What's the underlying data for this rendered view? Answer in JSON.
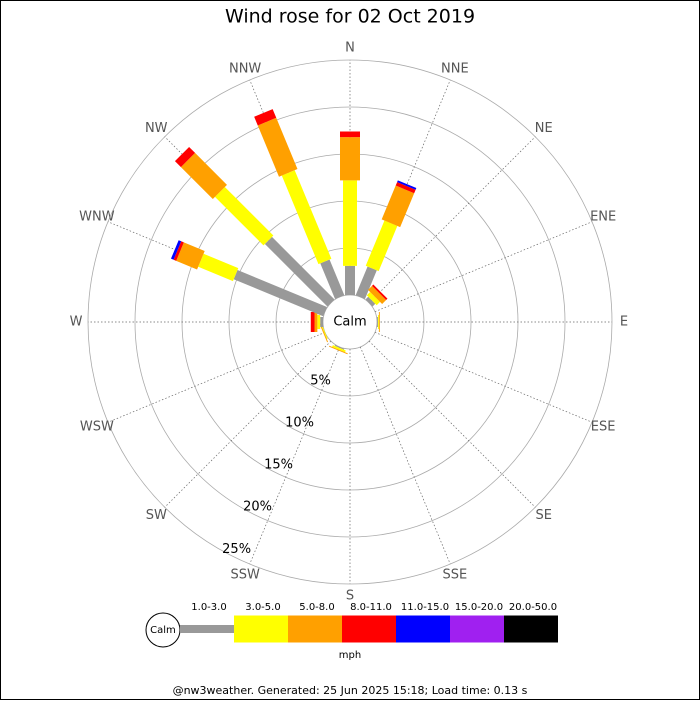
{
  "chart_data": {
    "type": "windrose",
    "title": "Wind rose for 02 Oct 2019",
    "directions": [
      "N",
      "NNE",
      "NE",
      "ENE",
      "E",
      "ESE",
      "SE",
      "SSE",
      "S",
      "SSW",
      "SW",
      "WSW",
      "W",
      "WNW",
      "NW",
      "NNW"
    ],
    "calm_label": "Calm",
    "units": "mph",
    "rlim": [
      0,
      25
    ],
    "rticks": [
      {
        "value": 5,
        "label": "5%"
      },
      {
        "value": 10,
        "label": "10%"
      },
      {
        "value": 15,
        "label": "15%"
      },
      {
        "value": 20,
        "label": "20%"
      },
      {
        "value": 25,
        "label": "25%"
      }
    ],
    "series": [
      {
        "name": "1.0-3.0",
        "color": "#999999",
        "values": [
          3.1,
          3.3,
          0.4,
          0,
          0.1,
          0,
          0,
          0,
          0,
          0.1,
          0,
          0,
          0.3,
          10.3,
          9.4,
          4.1
        ]
      },
      {
        "name": "3.0-5.0",
        "color": "#ffff00",
        "values": [
          9.1,
          5.2,
          0.5,
          0,
          0.1,
          0,
          0,
          0,
          0,
          0.2,
          0,
          0.1,
          0.3,
          4.0,
          7.3,
          10.2
        ]
      },
      {
        "name": "5.0-8.0",
        "color": "#ffa000",
        "values": [
          4.6,
          3.9,
          0.6,
          0,
          0.1,
          0,
          0,
          0,
          0,
          0.1,
          0,
          0.1,
          0.3,
          2.4,
          4.8,
          5.9
        ]
      },
      {
        "name": "8.0-11.0",
        "color": "#ff0000",
        "values": [
          0.6,
          0.4,
          0.2,
          0,
          0,
          0,
          0,
          0,
          0,
          0,
          0,
          0,
          0.4,
          0.3,
          0.9,
          1.0
        ]
      },
      {
        "name": "11.0-15.0",
        "color": "#0000ff",
        "values": [
          0,
          0.2,
          0,
          0,
          0,
          0,
          0,
          0,
          0,
          0,
          0,
          0,
          0,
          0.3,
          0,
          0
        ]
      },
      {
        "name": "15.0-20.0",
        "color": "#a020f0",
        "values": [
          0,
          0,
          0,
          0,
          0,
          0,
          0,
          0,
          0,
          0,
          0,
          0,
          0,
          0,
          0,
          0
        ]
      },
      {
        "name": "20.0-50.0",
        "color": "#000000",
        "values": [
          0,
          0,
          0,
          0,
          0,
          0,
          0,
          0,
          0,
          0,
          0,
          0,
          0,
          0,
          0,
          0
        ]
      }
    ],
    "footer": "@nw3weather. Generated: 25 Jun 2025 15:18; Load time: 0.13 s"
  }
}
